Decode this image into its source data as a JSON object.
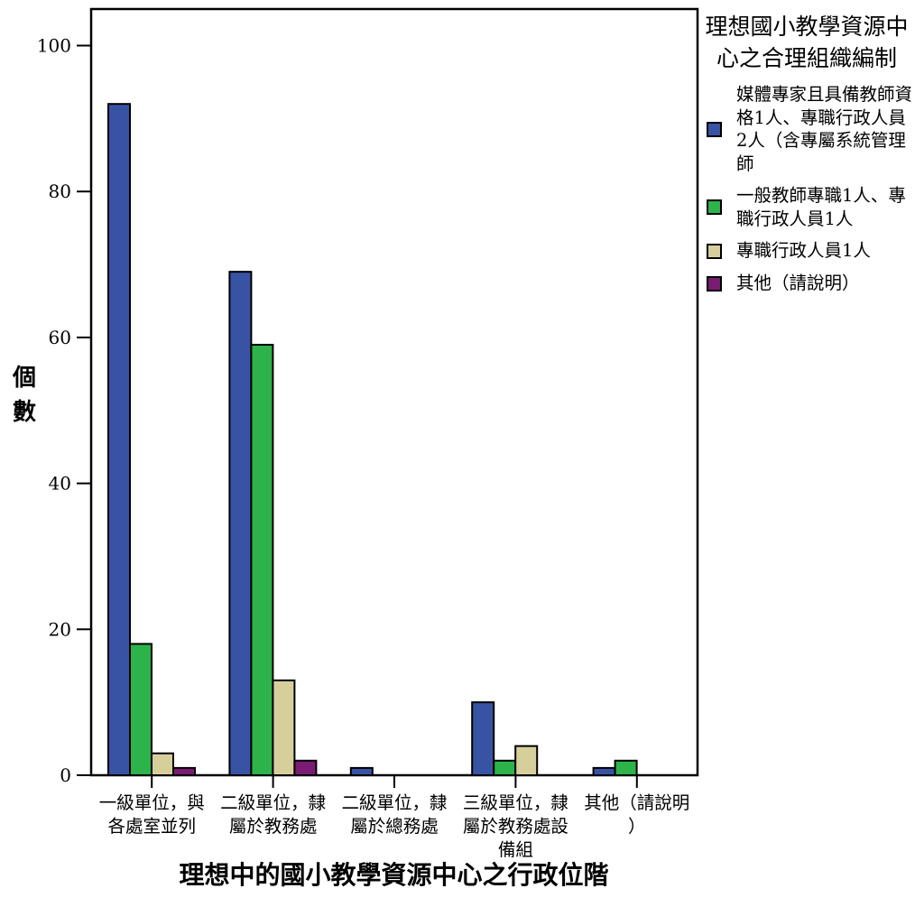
{
  "chart_data": {
    "type": "bar",
    "title": "",
    "xlabel": "理想中的國小教學資源中心之行政位階",
    "ylabel": "個數",
    "ylim": [
      0,
      105
    ],
    "yticks": [
      0,
      20,
      40,
      60,
      80,
      100
    ],
    "grid": false,
    "legend_position": "right",
    "legend_title": "理想國小教學資源中心之合理組織編制",
    "categories": [
      "一級單位，與各處室並列",
      "二級單位，隸屬於教務處",
      "二級單位，隸屬於總務處",
      "三級單位，隸屬於教務處設備組",
      "其他（請說明）"
    ],
    "series": [
      {
        "name": "媒體專家且具備教師資格1人、專職行政人員2人（含專屬系統管理師",
        "color": "#3953a4",
        "values": [
          92,
          69,
          1,
          10,
          1
        ]
      },
      {
        "name": "一般教師專職1人、專職行政人員1人",
        "color": "#2db34a",
        "values": [
          18,
          59,
          0,
          2,
          2
        ]
      },
      {
        "name": "專職行政人員1人",
        "color": "#d6cf9c",
        "values": [
          3,
          13,
          0,
          4,
          0
        ]
      },
      {
        "name": "其他（請說明）",
        "color": "#7a1c73",
        "values": [
          1,
          2,
          0,
          0,
          0
        ]
      }
    ]
  }
}
